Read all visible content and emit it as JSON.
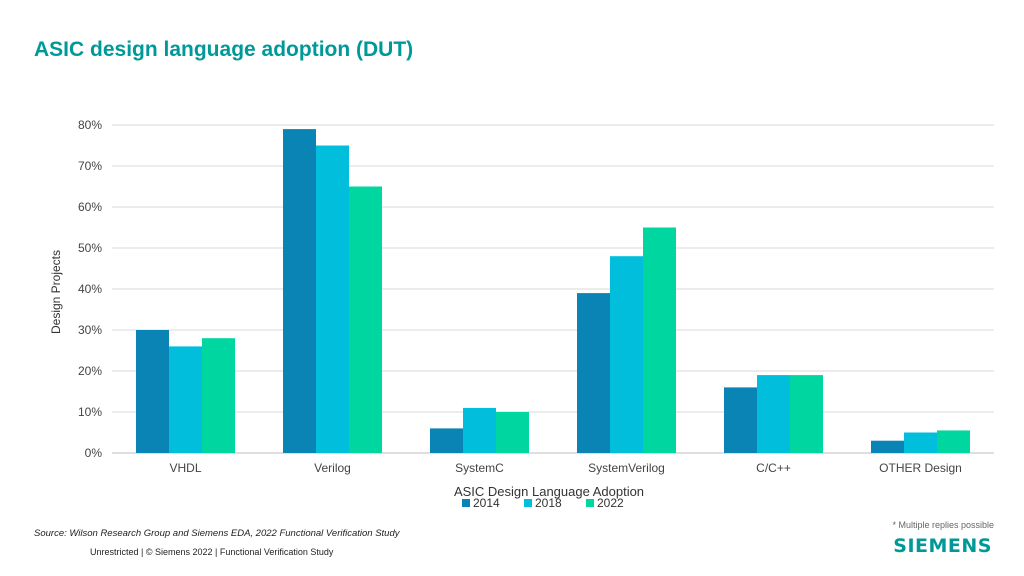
{
  "page": {
    "title": "ASIC design language adoption (DUT)",
    "source": "Source:  Wilson Research Group and Siemens EDA, 2022 Functional Verification Study",
    "footer": "Unrestricted | © Siemens 2022 |  Functional Verification Study",
    "note": "* Multiple replies possible",
    "logo": "SIEMENS"
  },
  "colors": {
    "title": "#009999",
    "s2014": "#0A83B5",
    "s2018": "#00BEDC",
    "s2022": "#00D7A0"
  },
  "chart_data": {
    "type": "bar",
    "title": "",
    "xlabel": "ASIC Design Language Adoption",
    "ylabel": "Design Projects",
    "ylim": [
      0,
      80
    ],
    "yticks": [
      "0%",
      "10%",
      "20%",
      "30%",
      "40%",
      "50%",
      "60%",
      "70%",
      "80%"
    ],
    "categories": [
      "VHDL",
      "Verilog",
      "SystemC",
      "SystemVerilog",
      "C/C++",
      "OTHER Design"
    ],
    "series": [
      {
        "name": "2014",
        "color": "#0A83B5",
        "values": [
          30,
          79,
          6,
          39,
          16,
          3
        ]
      },
      {
        "name": "2018",
        "color": "#00BEDC",
        "values": [
          26,
          75,
          11,
          48,
          19,
          5
        ]
      },
      {
        "name": "2022",
        "color": "#00D7A0",
        "values": [
          28,
          65,
          10,
          55,
          19,
          5.5
        ]
      }
    ],
    "grid": true,
    "legend": "bottom"
  }
}
